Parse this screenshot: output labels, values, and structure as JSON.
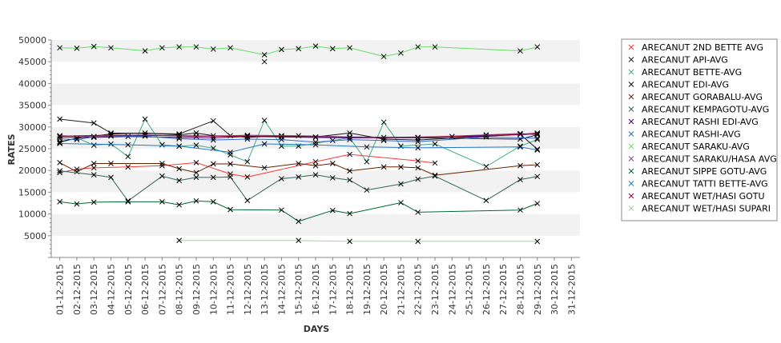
{
  "chart_data": {
    "type": "line",
    "title": "",
    "xlabel": "DAYS",
    "ylabel": "RATES",
    "ylim": [
      0,
      50000
    ],
    "yticks": [
      5000,
      10000,
      15000,
      20000,
      25000,
      30000,
      35000,
      40000,
      45000,
      50000
    ],
    "categories": [
      "01-12-2015",
      "02-12-2015",
      "03-12-2015",
      "04-12-2015",
      "05-12-2015",
      "06-12-2015",
      "07-12-2015",
      "08-12-2015",
      "09-12-2015",
      "10-12-2015",
      "11-12-2015",
      "12-12-2015",
      "13-12-2015",
      "14-12-2015",
      "15-12-2015",
      "16-12-2015",
      "17-12-2015",
      "18-12-2015",
      "19-12-2015",
      "20-12-2015",
      "21-12-2015",
      "22-12-2015",
      "23-12-2015",
      "24-12-2015",
      "25-12-2015",
      "26-12-2015",
      "27-12-2015",
      "28-12-2015",
      "29-12-2015",
      "30-12-2015",
      "31-12-2015"
    ],
    "legend_position": "right",
    "grid": "horizontal-bands",
    "series": [
      {
        "name": "ARECANUT 2ND BETTE AVG",
        "color": "#ff3333",
        "points": [
          [
            0,
            19500
          ],
          [
            1,
            20300
          ],
          [
            2,
            20600
          ],
          [
            4,
            20800
          ],
          [
            6,
            21100
          ],
          [
            8,
            21800
          ],
          [
            10,
            19200
          ],
          [
            11,
            18500
          ],
          [
            15,
            22000
          ],
          [
            17,
            23700
          ],
          [
            21,
            22200
          ],
          [
            22,
            21700
          ]
        ]
      },
      {
        "name": "ARECANUT API-AVG",
        "color": "#222222",
        "points": [
          [
            0,
            31800
          ],
          [
            2,
            30900
          ],
          [
            3,
            28600
          ],
          [
            7,
            28400
          ],
          [
            9,
            31400
          ],
          [
            10,
            28000
          ],
          [
            11,
            27600
          ],
          [
            13,
            28000
          ],
          [
            17,
            27600
          ],
          [
            21,
            27500
          ],
          [
            27,
            27200
          ],
          [
            28,
            28200
          ]
        ]
      },
      {
        "name": "ARECANUT BETTE-AVG",
        "color": "#44aa88",
        "points": [
          [
            0,
            26400
          ],
          [
            1,
            27500
          ],
          [
            2,
            25800
          ],
          [
            3,
            26100
          ],
          [
            4,
            23200
          ],
          [
            5,
            31800
          ],
          [
            6,
            25900
          ],
          [
            7,
            25600
          ],
          [
            8,
            25800
          ],
          [
            9,
            25100
          ],
          [
            10,
            23600
          ],
          [
            11,
            22000
          ],
          [
            12,
            31500
          ],
          [
            13,
            25600
          ],
          [
            14,
            25600
          ],
          [
            16,
            26900
          ],
          [
            17,
            27500
          ],
          [
            18,
            22000
          ],
          [
            19,
            31100
          ],
          [
            20,
            25600
          ],
          [
            22,
            26100
          ],
          [
            25,
            20900
          ],
          [
            27,
            25600
          ],
          [
            28,
            27100
          ]
        ]
      },
      {
        "name": "ARECANUT EDI-AVG",
        "color": "#111111",
        "points": [
          [
            0,
            26600
          ],
          [
            1,
            27400
          ],
          [
            3,
            28400
          ],
          [
            5,
            28600
          ],
          [
            7,
            28200
          ],
          [
            8,
            28600
          ],
          [
            9,
            28000
          ],
          [
            11,
            27900
          ],
          [
            13,
            27900
          ],
          [
            15,
            27700
          ],
          [
            17,
            28600
          ],
          [
            19,
            27200
          ],
          [
            21,
            27000
          ],
          [
            27,
            28300
          ],
          [
            28,
            24900
          ]
        ]
      },
      {
        "name": "ARECANUT GORABALU-AVG",
        "color": "#662200",
        "points": [
          [
            0,
            21800
          ],
          [
            1,
            19700
          ],
          [
            2,
            21600
          ],
          [
            3,
            21600
          ],
          [
            6,
            21600
          ],
          [
            7,
            20400
          ],
          [
            8,
            19500
          ],
          [
            9,
            21500
          ],
          [
            10,
            21500
          ],
          [
            12,
            20600
          ],
          [
            14,
            21600
          ],
          [
            15,
            21100
          ],
          [
            16,
            21600
          ],
          [
            17,
            19900
          ],
          [
            19,
            20800
          ],
          [
            20,
            20800
          ],
          [
            21,
            20600
          ],
          [
            22,
            18900
          ],
          [
            27,
            21100
          ],
          [
            28,
            21300
          ]
        ]
      },
      {
        "name": "ARECANUT KEMPAGOTU-AVG",
        "color": "#336655",
        "points": [
          [
            0,
            19900
          ],
          [
            2,
            19000
          ],
          [
            3,
            18400
          ],
          [
            4,
            13000
          ],
          [
            6,
            18700
          ],
          [
            7,
            17700
          ],
          [
            8,
            18400
          ],
          [
            9,
            18400
          ],
          [
            10,
            18500
          ],
          [
            11,
            13100
          ],
          [
            13,
            18100
          ],
          [
            14,
            18500
          ],
          [
            15,
            19000
          ],
          [
            16,
            18300
          ],
          [
            17,
            17800
          ],
          [
            18,
            15500
          ],
          [
            20,
            16900
          ],
          [
            21,
            18000
          ],
          [
            22,
            18700
          ],
          [
            25,
            13100
          ],
          [
            27,
            17900
          ],
          [
            28,
            18600
          ]
        ]
      },
      {
        "name": "ARECANUT RASHI EDI-AVG",
        "color": "#440088",
        "points": [
          [
            0,
            27700
          ],
          [
            2,
            27600
          ],
          [
            4,
            27800
          ],
          [
            7,
            27600
          ],
          [
            9,
            27500
          ],
          [
            11,
            27800
          ],
          [
            13,
            27700
          ],
          [
            15,
            27600
          ],
          [
            17,
            27500
          ],
          [
            21,
            27600
          ],
          [
            25,
            27900
          ],
          [
            28,
            28400
          ]
        ]
      },
      {
        "name": "ARECANUT RASHI-AVG",
        "color": "#3366cc",
        "points": [
          [
            0,
            27300
          ],
          [
            1,
            27100
          ],
          [
            2,
            27700
          ],
          [
            3,
            27900
          ],
          [
            5,
            27900
          ],
          [
            7,
            27300
          ],
          [
            9,
            27000
          ],
          [
            11,
            27200
          ],
          [
            13,
            27100
          ],
          [
            15,
            26500
          ],
          [
            17,
            27100
          ],
          [
            19,
            26900
          ],
          [
            21,
            26600
          ],
          [
            25,
            27700
          ],
          [
            28,
            27400
          ]
        ]
      },
      {
        "name": "ARECANUT SARAKU-AVG",
        "color": "#66dd66",
        "points": [
          [
            0,
            48200
          ],
          [
            1,
            48100
          ],
          [
            2,
            48500
          ],
          [
            3,
            48200
          ],
          [
            5,
            47500
          ],
          [
            6,
            48200
          ],
          [
            7,
            48400
          ],
          [
            8,
            48400
          ],
          [
            9,
            47900
          ],
          [
            10,
            48200
          ],
          [
            12,
            46600
          ],
          [
            13,
            47800
          ],
          [
            14,
            48000
          ],
          [
            15,
            48600
          ],
          [
            16,
            48000
          ],
          [
            17,
            48200
          ],
          [
            19,
            46200
          ],
          [
            20,
            47000
          ],
          [
            21,
            48400
          ],
          [
            22,
            48400
          ],
          [
            27,
            47500
          ],
          [
            28,
            48400
          ]
        ]
      },
      {
        "name": "ARECANUT SARAKU/HASA AVG",
        "color": "#884488",
        "points": [
          [
            0,
            28000
          ],
          [
            2,
            27800
          ],
          [
            5,
            28200
          ],
          [
            8,
            27800
          ],
          [
            11,
            28100
          ],
          [
            14,
            28000
          ],
          [
            17,
            27700
          ],
          [
            21,
            27600
          ],
          [
            25,
            28200
          ],
          [
            27,
            28500
          ],
          [
            28,
            28200
          ]
        ]
      },
      {
        "name": "ARECANUT SIPPE GOTU-AVG",
        "color": "#006633",
        "points": [
          [
            0,
            12800
          ],
          [
            1,
            12300
          ],
          [
            2,
            12700
          ],
          [
            4,
            12800
          ],
          [
            6,
            12800
          ],
          [
            7,
            12100
          ],
          [
            8,
            13000
          ],
          [
            9,
            12800
          ],
          [
            10,
            11000
          ],
          [
            13,
            10900
          ],
          [
            14,
            8300
          ],
          [
            16,
            10800
          ],
          [
            17,
            10100
          ],
          [
            20,
            12600
          ],
          [
            21,
            10400
          ],
          [
            27,
            10900
          ],
          [
            28,
            12400
          ]
        ]
      },
      {
        "name": "ARECANUT TATTI BETTE-AVG",
        "color": "#2277cc",
        "points": [
          [
            0,
            26200
          ],
          [
            4,
            25900
          ],
          [
            7,
            25600
          ],
          [
            10,
            24200
          ],
          [
            12,
            26100
          ],
          [
            15,
            25900
          ],
          [
            18,
            25400
          ],
          [
            21,
            25200
          ],
          [
            27,
            25400
          ],
          [
            28,
            24700
          ]
        ]
      },
      {
        "name": "ARECANUT WET/HASI GOTU",
        "color": "#990033",
        "points": [
          [
            0,
            27900
          ],
          [
            3,
            28100
          ],
          [
            7,
            28000
          ],
          [
            11,
            27800
          ],
          [
            15,
            27700
          ],
          [
            19,
            27600
          ],
          [
            23,
            27800
          ],
          [
            27,
            28300
          ],
          [
            28,
            28600
          ]
        ]
      },
      {
        "name": "ARECANUT WET/HASI SUPARI",
        "color": "#aaccaa",
        "points": [
          [
            7,
            3900
          ],
          [
            14,
            3900
          ],
          [
            17,
            3700
          ],
          [
            21,
            3700
          ],
          [
            28,
            3700
          ]
        ]
      }
    ],
    "extra_markers": [
      [
        12,
        45000
      ]
    ]
  }
}
